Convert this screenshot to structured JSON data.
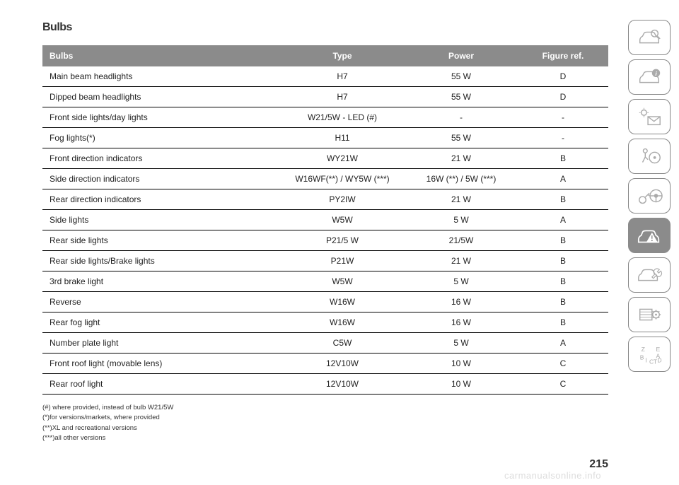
{
  "title": "Bulbs",
  "header_bg": "#8b8b8b",
  "header_text": "#ffffff",
  "columns": [
    "Bulbs",
    "Type",
    "Power",
    "Figure ref."
  ],
  "col_widths": [
    "42%",
    "22%",
    "20%",
    "16%"
  ],
  "rows": [
    [
      "Main beam headlights",
      "H7",
      "55 W",
      "D"
    ],
    [
      "Dipped beam headlights",
      "H7",
      "55 W",
      "D"
    ],
    [
      "Front side lights/day lights",
      "W21/5W - LED (#)",
      "-",
      "-"
    ],
    [
      "Fog lights(*)",
      "H11",
      "55 W",
      "-"
    ],
    [
      "Front direction indicators",
      "WY21W",
      "21 W",
      "B"
    ],
    [
      "Side direction indicators",
      "W16WF(**) / WY5W (***)",
      "16W (**) / 5W (***)",
      "A"
    ],
    [
      "Rear direction indicators",
      "PY2IW",
      "21 W",
      "B"
    ],
    [
      "Side lights",
      "W5W",
      "5 W",
      "A"
    ],
    [
      "Rear side lights",
      "P21/5 W",
      "21/5W",
      "B"
    ],
    [
      "Rear side lights/Brake lights",
      "P21W",
      "21 W",
      "B"
    ],
    [
      "3rd brake light",
      "W5W",
      "5 W",
      "B"
    ],
    [
      "Reverse",
      "W16W",
      "16 W",
      "B"
    ],
    [
      "Rear fog light",
      "W16W",
      "16 W",
      "B"
    ],
    [
      "Number plate light",
      "C5W",
      "5 W",
      "A"
    ],
    [
      "Front roof light (movable lens)",
      "12V10W",
      "10 W",
      "C"
    ],
    [
      "Rear roof light",
      "12V10W",
      "10 W",
      "C"
    ]
  ],
  "footnotes": [
    "(#) where provided, instead of bulb W21/5W",
    "(*)for versions/markets, where provided",
    "(**)XL and recreational versions",
    "(***)all other versions"
  ],
  "page_number": "215",
  "watermark": "carmanualsonline.info",
  "sidebar": [
    {
      "name": "car-search-icon",
      "active": false
    },
    {
      "name": "car-info-icon",
      "active": false
    },
    {
      "name": "light-mail-icon",
      "active": false
    },
    {
      "name": "airbag-icon",
      "active": false
    },
    {
      "name": "key-wheel-icon",
      "active": false
    },
    {
      "name": "car-warning-icon",
      "active": true
    },
    {
      "name": "car-wrench-icon",
      "active": false
    },
    {
      "name": "table-gear-icon",
      "active": false
    },
    {
      "name": "alphabet-icon",
      "active": false
    }
  ]
}
